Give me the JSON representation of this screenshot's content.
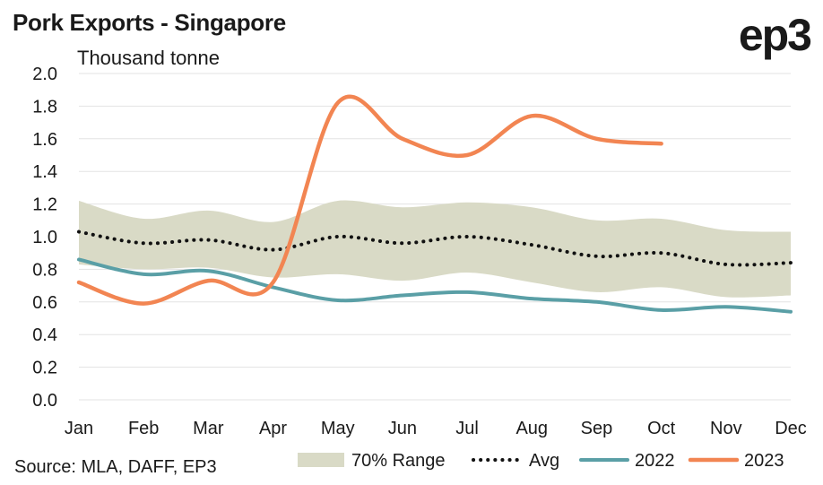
{
  "header": {
    "title": "Pork Exports - Singapore",
    "logo": "ep3"
  },
  "footer": {
    "source": "Source: MLA, DAFF, EP3"
  },
  "colors": {
    "range": "#d9dac6",
    "avg": "#111111",
    "s2022": "#5a9fa6",
    "s2023": "#f28552",
    "grid": "#e3e3e3"
  },
  "chart_data": {
    "type": "line",
    "title": "Pork Exports - Singapore",
    "ylabel": "Thousand tonne",
    "xlabel": "",
    "categories": [
      "Jan",
      "Feb",
      "Mar",
      "Apr",
      "May",
      "Jun",
      "Jul",
      "Aug",
      "Sep",
      "Oct",
      "Nov",
      "Dec"
    ],
    "ylim": [
      0,
      2.0
    ],
    "yticks": [
      "0.0",
      "0.2",
      "0.4",
      "0.6",
      "0.8",
      "1.0",
      "1.2",
      "1.4",
      "1.6",
      "1.8",
      "2.0"
    ],
    "grid": true,
    "legend_position": "bottom",
    "range": {
      "name": "70% Range",
      "upper": [
        1.22,
        1.11,
        1.16,
        1.09,
        1.22,
        1.18,
        1.21,
        1.18,
        1.1,
        1.11,
        1.04,
        1.03
      ],
      "lower": [
        0.83,
        0.8,
        0.81,
        0.75,
        0.77,
        0.73,
        0.78,
        0.72,
        0.66,
        0.69,
        0.63,
        0.64
      ]
    },
    "series": [
      {
        "name": "Avg",
        "values": [
          1.03,
          0.96,
          0.98,
          0.92,
          1.0,
          0.96,
          1.0,
          0.95,
          0.88,
          0.9,
          0.83,
          0.84
        ]
      },
      {
        "name": "2022",
        "values": [
          0.86,
          0.77,
          0.79,
          0.69,
          0.61,
          0.64,
          0.66,
          0.62,
          0.6,
          0.55,
          0.57,
          0.54
        ]
      },
      {
        "name": "2023",
        "values": [
          0.72,
          0.59,
          0.73,
          0.72,
          1.82,
          1.6,
          1.5,
          1.74,
          1.6,
          1.57,
          null,
          null
        ]
      }
    ]
  }
}
